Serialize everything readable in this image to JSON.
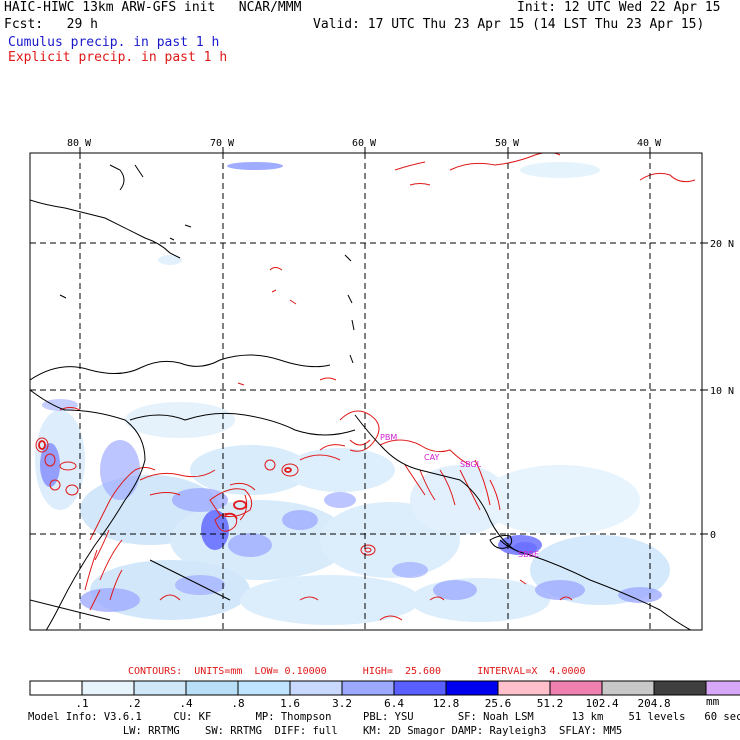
{
  "header": {
    "title_left": "HAIC-HIWC 13km ARW-GFS init   NCAR/MMM",
    "init": "Init: 12 UTC Wed 22 Apr 15",
    "fcst": "Fcst:   29 h",
    "valid": "Valid: 17 UTC Thu 23 Apr 15 (14 LST Thu 23 Apr 15)",
    "legend_cumulus": "Cumulus precip. in past 1 h",
    "legend_explicit": "Explicit precip. in past 1 h"
  },
  "map": {
    "lon_labels": [
      "80 W",
      "70 W",
      "60 W",
      "50 W",
      "40 W"
    ],
    "lat_labels": [
      "20 N",
      "10 N",
      "0"
    ],
    "cities": [
      "PBM",
      "CAY",
      "SBGL",
      "SBBE"
    ]
  },
  "contours_text": "CONTOURS:  UNITS=mm  LOW= 0.10000      HIGH=  25.600      INTERVAL=X  4.0000",
  "colorbar": {
    "labels": [
      ".1",
      ".2",
      ".4",
      ".8",
      "1.6",
      "3.2",
      "6.4",
      "12.8",
      "25.6",
      "51.2",
      "102.4",
      "204.8"
    ],
    "unit": "mm",
    "colors": [
      "#ffffff",
      "#e8f4fc",
      "#cfe8f8",
      "#b8dff5",
      "#c0e6ff",
      "#c8d8ff",
      "#9aa8ff",
      "#5a60ff",
      "#0000ee",
      "#ffc0cc",
      "#f080b0",
      "#c8c8c8",
      "#404040",
      "#d8a8f8"
    ]
  },
  "footer": {
    "line1": "Model Info: V3.6.1     CU: KF       MP: Thompson     PBL: YSU       SF: Noah LSM      13 km    51 levels   60 sec",
    "line2": "               LW: RRTMG    SW: RRTMG  DIFF: full    KM: 2D Smagor DAMP: Rayleigh3  SFLAY: MM5"
  }
}
